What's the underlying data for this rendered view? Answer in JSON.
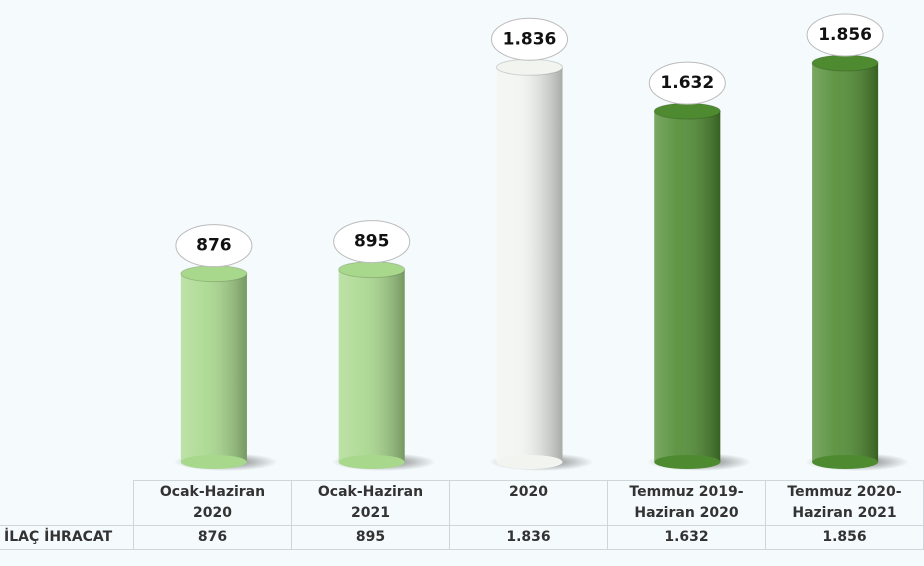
{
  "chart_data": {
    "type": "bar",
    "categories": [
      "Ocak-Haziran 2020",
      "Ocak-Haziran 2021",
      "2020",
      "Temmuz 2019-Haziran 2020",
      "Temmuz 2020-Haziran 2021"
    ],
    "series": [
      {
        "name": "İLAÇ İHRACAT",
        "colors": [
          "#a8d88c",
          "#a8d88c",
          "#f2f4f0",
          "#4e8a30",
          "#4e8a30"
        ],
        "values": [
          876,
          895,
          1836,
          1632,
          1856
        ],
        "value_labels": [
          "876",
          "895",
          "1.836",
          "1.632",
          "1.856"
        ]
      }
    ]
  }
}
